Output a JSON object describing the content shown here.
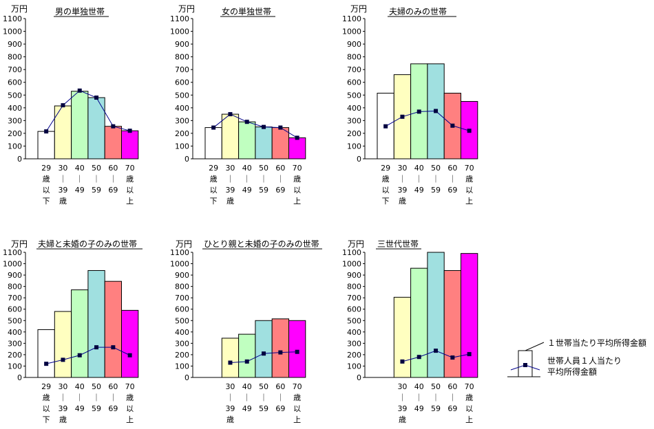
{
  "unit": "万円",
  "colors": [
    "#ffffff",
    "#ffffc0",
    "#c0ffc0",
    "#a0e0e0",
    "#ff8080",
    "#ff00ff"
  ],
  "line_color": "#00008b",
  "marker_color": "#000040",
  "legend": {
    "bar_label": "１世帯当たり平均所得金額",
    "line_label_1": "世帯人員１人当たり",
    "line_label_2": "平均所得金額"
  },
  "chart_data": [
    {
      "type": "bar",
      "title": "男の単独世帯",
      "ylabel": "万円",
      "ylim": [
        0,
        1100
      ],
      "categories": [
        [
          "29",
          "歳",
          "以",
          "下"
        ],
        [
          "30",
          "｜",
          "39",
          "歳"
        ],
        [
          "40",
          "｜",
          "49"
        ],
        [
          "50",
          "｜",
          "59"
        ],
        [
          "60",
          "｜",
          "69"
        ],
        [
          "70",
          "歳",
          "以",
          "上"
        ]
      ],
      "series": [
        {
          "name": "１世帯当たり平均所得金額",
          "kind": "bar",
          "values": [
            215,
            415,
            530,
            480,
            255,
            220
          ]
        },
        {
          "name": "世帯人員１人当たり平均所得金額",
          "kind": "line",
          "values": [
            215,
            420,
            535,
            480,
            255,
            220
          ]
        }
      ]
    },
    {
      "type": "bar",
      "title": "女の単独世帯",
      "ylabel": "万円",
      "ylim": [
        0,
        1100
      ],
      "categories": [
        [
          "29",
          "歳",
          "以",
          "下"
        ],
        [
          "30",
          "｜",
          "39",
          "歳"
        ],
        [
          "40",
          "｜",
          "49"
        ],
        [
          "50",
          "｜",
          "59"
        ],
        [
          "60",
          "｜",
          "69"
        ],
        [
          "70",
          "歳",
          "以",
          "上"
        ]
      ],
      "series": [
        {
          "name": "１世帯当たり平均所得金額",
          "kind": "bar",
          "values": [
            245,
            350,
            290,
            250,
            245,
            165
          ]
        },
        {
          "name": "世帯人員１人当たり平均所得金額",
          "kind": "line",
          "values": [
            245,
            350,
            290,
            250,
            245,
            165
          ]
        }
      ]
    },
    {
      "type": "bar",
      "title": "夫婦のみの世帯",
      "ylabel": "万円",
      "ylim": [
        0,
        1100
      ],
      "categories": [
        [
          "29",
          "歳",
          "以",
          "下"
        ],
        [
          "30",
          "｜",
          "39",
          "歳"
        ],
        [
          "40",
          "｜",
          "49"
        ],
        [
          "50",
          "｜",
          "59"
        ],
        [
          "60",
          "｜",
          "69"
        ],
        [
          "70",
          "歳",
          "以",
          "上"
        ]
      ],
      "series": [
        {
          "name": "１世帯当たり平均所得金額",
          "kind": "bar",
          "values": [
            515,
            660,
            745,
            745,
            515,
            450
          ]
        },
        {
          "name": "世帯人員１人当たり平均所得金額",
          "kind": "line",
          "values": [
            255,
            330,
            370,
            375,
            260,
            220
          ]
        }
      ]
    },
    {
      "type": "bar",
      "title": "夫婦と未婚の子のみの世帯",
      "ylabel": "万円",
      "ylim": [
        0,
        1100
      ],
      "categories": [
        [
          "29",
          "歳",
          "以",
          "下"
        ],
        [
          "30",
          "｜",
          "39",
          "歳"
        ],
        [
          "40",
          "｜",
          "49"
        ],
        [
          "50",
          "｜",
          "59"
        ],
        [
          "60",
          "｜",
          "69"
        ],
        [
          "70",
          "歳",
          "以",
          "上"
        ]
      ],
      "series": [
        {
          "name": "１世帯当たり平均所得金額",
          "kind": "bar",
          "values": [
            420,
            580,
            770,
            940,
            845,
            590
          ]
        },
        {
          "name": "世帯人員１人当たり平均所得金額",
          "kind": "line",
          "values": [
            120,
            155,
            195,
            265,
            265,
            195
          ]
        }
      ]
    },
    {
      "type": "bar",
      "title": "ひとり親と未婚の子のみの世帯",
      "ylabel": "万円",
      "ylim": [
        0,
        1100
      ],
      "categories": [
        [],
        [
          "30",
          "｜",
          "39",
          "歳"
        ],
        [
          "40",
          "｜",
          "49"
        ],
        [
          "50",
          "｜",
          "59"
        ],
        [
          "60",
          "｜",
          "69"
        ],
        [
          "70",
          "歳",
          "以",
          "上"
        ]
      ],
      "series": [
        {
          "name": "１世帯当たり平均所得金額",
          "kind": "bar",
          "values": [
            null,
            345,
            380,
            500,
            515,
            500
          ]
        },
        {
          "name": "世帯人員１人当たり平均所得金額",
          "kind": "line",
          "values": [
            null,
            130,
            140,
            210,
            220,
            225
          ]
        }
      ]
    },
    {
      "type": "bar",
      "title": "三世代世帯",
      "ylabel": "万円",
      "ylim": [
        0,
        1100
      ],
      "categories": [
        [],
        [
          "30",
          "｜",
          "39",
          "歳"
        ],
        [
          "40",
          "｜",
          "49"
        ],
        [
          "50",
          "｜",
          "59"
        ],
        [
          "60",
          "｜",
          "69"
        ],
        [
          "70",
          "歳",
          "以",
          "上"
        ]
      ],
      "series": [
        {
          "name": "１世帯当たり平均所得金額",
          "kind": "bar",
          "values": [
            null,
            705,
            960,
            1100,
            940,
            1090
          ]
        },
        {
          "name": "世帯人員１人当たり平均所得金額",
          "kind": "line",
          "values": [
            null,
            140,
            180,
            235,
            175,
            205
          ]
        }
      ]
    }
  ]
}
